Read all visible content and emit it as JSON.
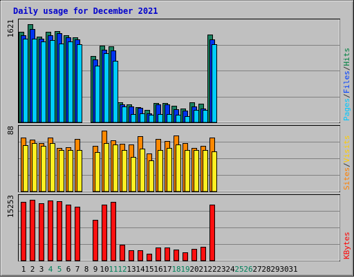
{
  "chart_data": {
    "type": "bar",
    "title": "Daily usage for December 2021",
    "x": [
      "1",
      "2",
      "3",
      "4",
      "5",
      "6",
      "7",
      "8",
      "9",
      "10",
      "11",
      "12",
      "13",
      "14",
      "15",
      "16",
      "17",
      "18",
      "19",
      "20",
      "21",
      "22",
      "23",
      "24",
      "25",
      "26",
      "27",
      "28",
      "29",
      "30",
      "31"
    ],
    "weekend_days": [
      "4",
      "5",
      "11",
      "12",
      "18",
      "19",
      "25",
      "26"
    ],
    "panels": [
      {
        "name": "hits_files_pages",
        "ymax": 1621,
        "ymax_label": "1621",
        "legend": [
          {
            "label": "Pages",
            "color": "#00c8ff"
          },
          {
            "label": "/",
            "color": "#333333"
          },
          {
            "label": "Files",
            "color": "#0040ff"
          },
          {
            "label": "/",
            "color": "#333333"
          },
          {
            "label": "Hits",
            "color": "#008040"
          }
        ],
        "series": [
          {
            "name": "Hits",
            "color": "#1a8060",
            "values": [
              1500,
              1621,
              1420,
              1490,
              1510,
              1440,
              1400,
              null,
              1100,
              1270,
              1250,
              330,
              300,
              250,
              200,
              320,
              320,
              270,
              230,
              330,
              310,
              1450,
              null,
              null,
              null,
              null,
              null,
              null,
              null,
              null,
              null
            ]
          },
          {
            "name": "Files",
            "color": "#0033ee",
            "values": [
              1440,
              1540,
              1380,
              1440,
              1470,
              1400,
              1370,
              null,
              1040,
              1200,
              1190,
              300,
              260,
              240,
              150,
              300,
              300,
              220,
              190,
              260,
              230,
              1370,
              null,
              null,
              null,
              null,
              null,
              null,
              null,
              null,
              null
            ]
          },
          {
            "name": "Pages",
            "color": "#00ccff",
            "values": [
              1380,
              1380,
              1340,
              1360,
              1300,
              1330,
              1290,
              null,
              940,
              1140,
              1020,
              260,
              140,
              150,
              120,
              140,
              140,
              120,
              100,
              200,
              200,
              1290,
              null,
              null,
              null,
              null,
              null,
              null,
              null,
              null,
              null
            ]
          }
        ]
      },
      {
        "name": "visits_sites",
        "ymax": 88,
        "ymax_label": "88",
        "legend": [
          {
            "label": "Sites",
            "color": "#ff8000"
          },
          {
            "label": "/",
            "color": "#333333"
          },
          {
            "label": "Visits",
            "color": "#ffcc00"
          }
        ],
        "series": [
          {
            "name": "Sites",
            "color": "#ff8800",
            "values": [
              78,
              75,
              70,
              78,
              63,
              64,
              76,
              null,
              66,
              88,
              74,
              69,
              68,
              80,
              55,
              76,
              73,
              81,
              70,
              63,
              66,
              78,
              null,
              null,
              null,
              null,
              null,
              null,
              null,
              null,
              null
            ]
          },
          {
            "name": "Visits",
            "color": "#ffee22",
            "values": [
              67,
              70,
              66,
              70,
              60,
              60,
              60,
              null,
              57,
              70,
              68,
              60,
              50,
              62,
              45,
              60,
              63,
              68,
              60,
              60,
              60,
              58,
              null,
              null,
              null,
              null,
              null,
              null,
              null,
              null,
              null
            ]
          }
        ]
      },
      {
        "name": "kbytes",
        "ymax": 15253,
        "ymax_label": "15253",
        "legend": [
          {
            "label": "KBytes",
            "color": "#ff0000"
          }
        ],
        "series": [
          {
            "name": "KBytes",
            "color": "#ff1010",
            "values": [
              14750,
              15253,
              14300,
              15100,
              14850,
              14050,
              13600,
              null,
              10200,
              14100,
              14750,
              3900,
              2600,
              2600,
              1700,
              3300,
              3300,
              2800,
              2100,
              3000,
              3500,
              14100,
              null,
              null,
              null,
              null,
              null,
              null,
              null,
              null,
              null
            ]
          }
        ]
      }
    ]
  }
}
